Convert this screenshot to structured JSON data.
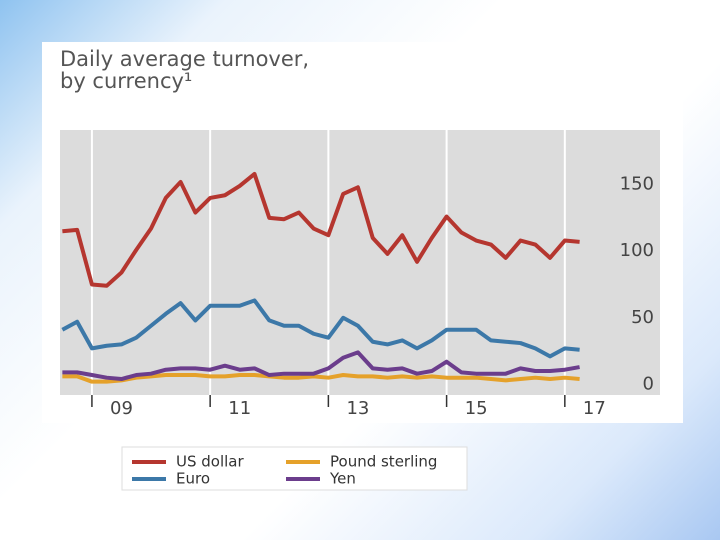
{
  "chart_data": {
    "type": "line",
    "title": [
      "Daily average turnover,",
      "by currency¹"
    ],
    "x": [
      2008.5,
      2008.75,
      2009,
      2009.25,
      2009.5,
      2009.75,
      2010,
      2010.25,
      2010.5,
      2010.75,
      2011,
      2011.25,
      2011.5,
      2011.75,
      2012,
      2012.25,
      2012.5,
      2012.75,
      2013,
      2013.25,
      2013.5,
      2013.75,
      2014,
      2014.25,
      2014.5,
      2014.75,
      2015,
      2015.25,
      2015.5,
      2015.75,
      2016,
      2016.25,
      2016.5,
      2016.75,
      2017,
      2017.25
    ],
    "series": [
      {
        "name": "US dollar",
        "color": "#b5362f",
        "values": [
          115,
          116,
          75,
          74,
          84,
          101,
          117,
          140,
          152,
          129,
          140,
          142,
          149,
          158,
          125,
          124,
          129,
          117,
          112,
          143,
          148,
          110,
          98,
          112,
          92,
          110,
          126,
          114,
          108,
          105,
          95,
          108,
          105,
          95,
          108,
          107
        ]
      },
      {
        "name": "Euro",
        "color": "#3c78a8",
        "values": [
          41,
          47,
          27,
          29,
          30,
          35,
          44,
          53,
          61,
          48,
          59,
          59,
          59,
          63,
          48,
          44,
          44,
          38,
          35,
          50,
          44,
          32,
          30,
          33,
          27,
          33,
          41,
          41,
          41,
          33,
          32,
          31,
          27,
          21,
          27,
          26
        ]
      },
      {
        "name": "Pound sterling",
        "color": "#e5a12a",
        "values": [
          6,
          6,
          2,
          2,
          3,
          5,
          6,
          7,
          7,
          7,
          6,
          6,
          7,
          7,
          6,
          5,
          5,
          6,
          5,
          7,
          6,
          6,
          5,
          6,
          5,
          6,
          5,
          5,
          5,
          4,
          3,
          4,
          5,
          4,
          5,
          4
        ]
      },
      {
        "name": "Yen",
        "color": "#6b3d8c",
        "values": [
          9,
          9,
          7,
          5,
          4,
          7,
          8,
          11,
          12,
          12,
          11,
          14,
          11,
          12,
          7,
          8,
          8,
          8,
          12,
          20,
          24,
          12,
          11,
          12,
          8,
          10,
          17,
          9,
          8,
          8,
          8,
          12,
          10,
          10,
          11,
          13
        ]
      }
    ],
    "xlim": [
      2008.46,
      2018.61
    ],
    "xticks": [
      {
        "value": 2009.5,
        "label": "09"
      },
      {
        "value": 2011.5,
        "label": "11"
      },
      {
        "value": 2013.5,
        "label": "13"
      },
      {
        "value": 2015.5,
        "label": "15"
      },
      {
        "value": 2017.5,
        "label": "17"
      }
    ],
    "xgrid": [
      2009,
      2011,
      2013,
      2015,
      2017
    ],
    "ylim": [
      -8,
      191
    ],
    "yticks": [
      0,
      50,
      100,
      150
    ],
    "y_axis_side": "right",
    "grid": "x"
  }
}
